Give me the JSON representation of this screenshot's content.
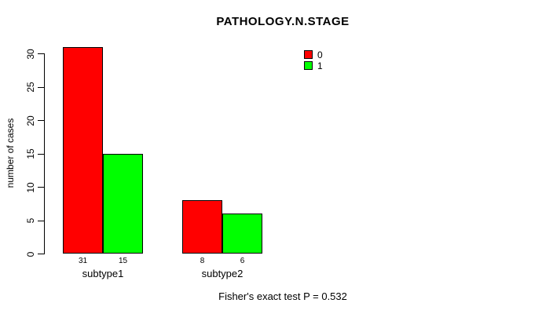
{
  "chart_data": {
    "type": "bar",
    "title": "PATHOLOGY.N.STAGE",
    "ylabel": "number of cases",
    "xlabel": "",
    "categories": [
      "subtype1",
      "subtype2"
    ],
    "series": [
      {
        "name": "0",
        "color": "#ff0000",
        "values": [
          31,
          8
        ]
      },
      {
        "name": "1",
        "color": "#00ff00",
        "values": [
          15,
          6
        ]
      }
    ],
    "bar_value_labels": [
      [
        "31",
        "8"
      ],
      [
        "15",
        "6"
      ]
    ],
    "ylim": [
      0,
      30
    ],
    "yticks": [
      0,
      5,
      10,
      15,
      20,
      25,
      30
    ],
    "grid": false,
    "legend_position": "top-right",
    "annotation": "Fisher's exact test P = 0.532"
  },
  "colors": {
    "axis": "#000000",
    "background": "#ffffff",
    "series0": "#ff0000",
    "series1": "#00ff00"
  }
}
